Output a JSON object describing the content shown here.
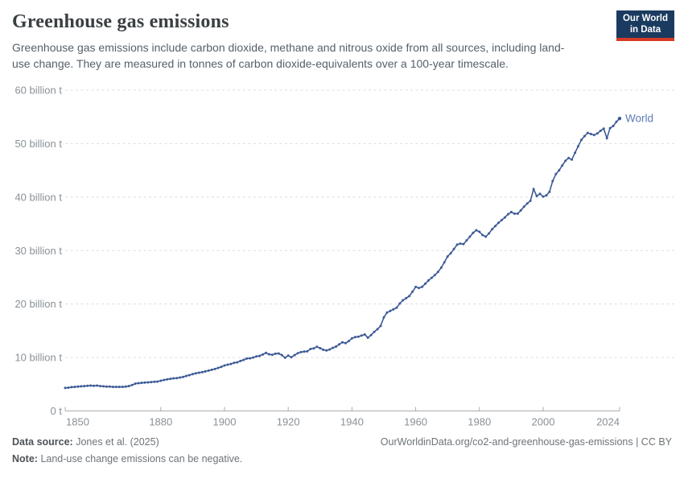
{
  "header": {
    "title": "Greenhouse gas emissions",
    "subtitle": "Greenhouse gas emissions include carbon dioxide, methane and nitrous oxide from all sources, including land-use change. They are measured in tonnes of carbon dioxide-equivalents over a 100-year timescale.",
    "logo": {
      "line1": "Our World",
      "line2": "in Data",
      "bg_color": "#1b3a5f",
      "accent_color": "#d53a27"
    }
  },
  "chart_data": {
    "type": "line",
    "title": "Greenhouse gas emissions",
    "unit": "billion t",
    "xlim": [
      1850,
      2024
    ],
    "ylim": [
      0,
      60
    ],
    "grid": "horizontal-dashed",
    "legend_position": "end-of-line-label",
    "xticks": [
      1850,
      1880,
      1900,
      1920,
      1940,
      1960,
      1980,
      2000,
      2024
    ],
    "yticks": [
      {
        "value": 0,
        "label": "0 t"
      },
      {
        "value": 10,
        "label": "10 billion t"
      },
      {
        "value": 20,
        "label": "20 billion t"
      },
      {
        "value": 30,
        "label": "30 billion t"
      },
      {
        "value": 40,
        "label": "40 billion t"
      },
      {
        "value": 50,
        "label": "50 billion t"
      },
      {
        "value": 60,
        "label": "60 billion t"
      }
    ],
    "series": [
      {
        "name": "World",
        "color": "#3d5a96",
        "label_color": "#5d7cb4",
        "x_start": 1850,
        "x_end": 2024,
        "values": [
          4.3,
          4.35,
          4.45,
          4.5,
          4.55,
          4.6,
          4.65,
          4.7,
          4.75,
          4.7,
          4.75,
          4.65,
          4.6,
          4.55,
          4.55,
          4.5,
          4.5,
          4.5,
          4.5,
          4.55,
          4.65,
          4.85,
          5.1,
          5.2,
          5.25,
          5.3,
          5.35,
          5.4,
          5.45,
          5.5,
          5.65,
          5.8,
          5.9,
          6.0,
          6.1,
          6.15,
          6.25,
          6.35,
          6.55,
          6.7,
          6.9,
          7.05,
          7.15,
          7.25,
          7.4,
          7.55,
          7.7,
          7.85,
          8.05,
          8.25,
          8.5,
          8.65,
          8.8,
          9.0,
          9.1,
          9.35,
          9.55,
          9.8,
          9.85,
          10.0,
          10.2,
          10.3,
          10.55,
          10.85,
          10.6,
          10.5,
          10.7,
          10.75,
          10.45,
          9.95,
          10.35,
          10.05,
          10.45,
          10.8,
          11.0,
          11.1,
          11.15,
          11.6,
          11.7,
          12.0,
          11.75,
          11.45,
          11.3,
          11.5,
          11.8,
          12.05,
          12.45,
          12.85,
          12.7,
          13.05,
          13.6,
          13.8,
          13.9,
          14.1,
          14.3,
          13.7,
          14.2,
          14.8,
          15.3,
          15.9,
          17.5,
          18.4,
          18.7,
          19.0,
          19.3,
          20.1,
          20.7,
          21.1,
          21.5,
          22.3,
          23.2,
          23.0,
          23.2,
          23.8,
          24.4,
          24.9,
          25.4,
          26.0,
          26.8,
          27.8,
          28.9,
          29.5,
          30.3,
          31.1,
          31.3,
          31.2,
          31.9,
          32.6,
          33.3,
          33.8,
          33.5,
          32.9,
          32.6,
          33.2,
          34.0,
          34.6,
          35.2,
          35.7,
          36.2,
          36.8,
          37.2,
          36.9,
          36.9,
          37.5,
          38.2,
          38.8,
          39.3,
          41.5,
          40.2,
          40.6,
          40.1,
          40.3,
          41.0,
          43.0,
          44.3,
          45.0,
          45.9,
          46.8,
          47.3,
          47.0,
          48.3,
          49.5,
          50.7,
          51.4,
          52.0,
          51.8,
          51.6,
          51.9,
          52.4,
          52.8,
          51.0,
          52.9,
          53.3,
          54.1,
          54.7
        ]
      }
    ],
    "axis_color": "#a8adb2",
    "grid_color": "#dadde0",
    "tick_label_color": "#8a9196"
  },
  "footer": {
    "datasource_label": "Data source:",
    "datasource_value": "Jones et al. (2025)",
    "url_credit": "OurWorldinData.org/co2-and-greenhouse-gas-emissions | CC BY",
    "note_label": "Note:",
    "note_value": "Land-use change emissions can be negative."
  }
}
